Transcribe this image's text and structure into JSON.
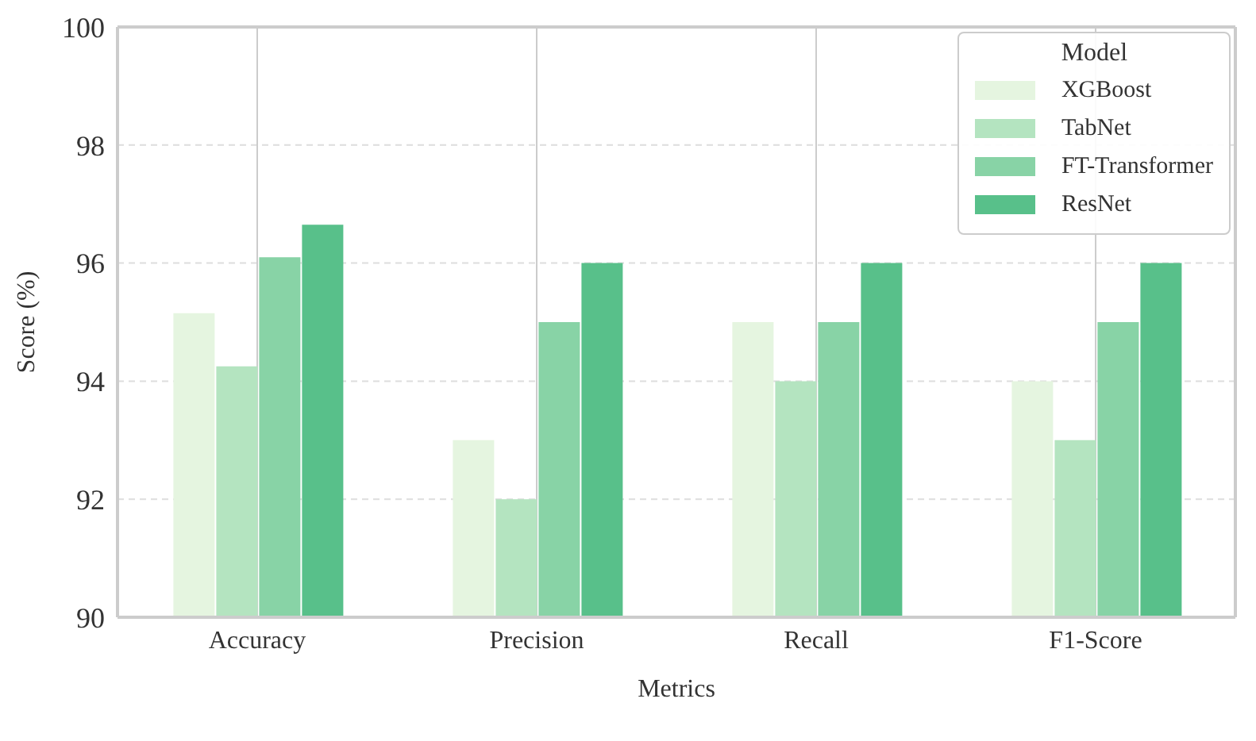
{
  "chart_data": {
    "type": "bar",
    "xlabel": "Metrics",
    "ylabel": "Score (%)",
    "legend_title": "Model",
    "categories": [
      "Accuracy",
      "Precision",
      "Recall",
      "F1-Score"
    ],
    "series": [
      {
        "name": "XGBoost",
        "color": "#e5f5e0",
        "values": [
          95.15,
          93,
          95,
          94
        ]
      },
      {
        "name": "TabNet",
        "color": "#b4e4c0",
        "values": [
          94.25,
          92,
          94,
          93
        ]
      },
      {
        "name": "FT-Transformer",
        "color": "#88d3a6",
        "values": [
          96.1,
          95,
          95,
          95
        ]
      },
      {
        "name": "ResNet",
        "color": "#58c08a",
        "values": [
          96.65,
          96,
          96,
          96
        ]
      }
    ],
    "ylim": [
      90,
      100
    ],
    "yticks": [
      90,
      92,
      94,
      96,
      98,
      100
    ],
    "grid": true,
    "legend": "top right"
  }
}
